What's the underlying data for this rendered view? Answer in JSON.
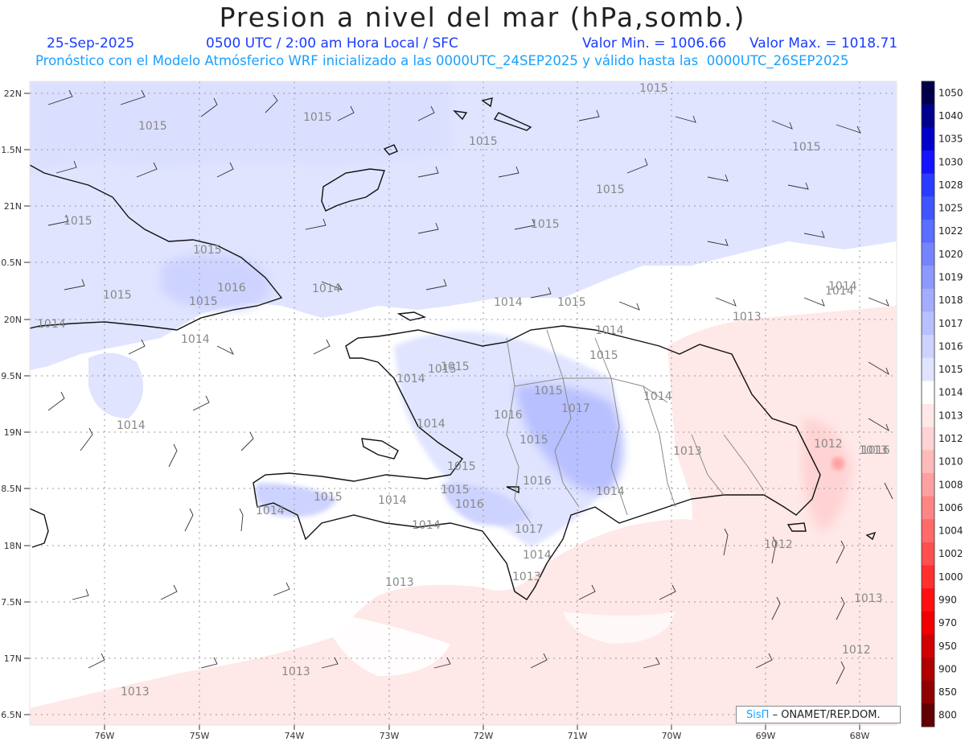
{
  "title": "Presion a nivel del mar (hPa,somb.)",
  "header": {
    "date": "25-Sep-2025",
    "time": "0500 UTC / 2:00 am Hora Local / SFC",
    "min_label": "Valor Min. = 1006.66",
    "max_label": "Valor Max. = 1018.71",
    "forecast_note": "Pronóstico con el Modelo Atmósferico WRF inicializado a las 0000UTC_24SEP2025 y válido hasta las  0000UTC_26SEP2025"
  },
  "credit": {
    "logo": "SisΠ",
    "text": "– ONAMET/REP.DOM."
  },
  "axes": {
    "lat_labels": [
      "22N",
      "1.5N",
      "21N",
      "0.5N",
      "20N",
      "9.5N",
      "19N",
      "8.5N",
      "18N",
      "7.5N",
      "17N",
      "6.5N"
    ],
    "lon_labels": [
      "76W",
      "75W",
      "74W",
      "73W",
      "72W",
      "71W",
      "70W",
      "69W",
      "68W"
    ]
  },
  "colorbar": {
    "levels": [
      "1050",
      "1040",
      "1035",
      "1030",
      "1028",
      "1025",
      "1022",
      "1020",
      "1019",
      "1018",
      "1017",
      "1016",
      "1015",
      "1014",
      "1013",
      "1012",
      "1010",
      "1008",
      "1006",
      "1004",
      "1002",
      "1000",
      "990",
      "970",
      "950",
      "900",
      "850",
      "800"
    ],
    "colors": [
      "#00004a",
      "#00008c",
      "#0000c8",
      "#1414ff",
      "#2a3cff",
      "#3f55ff",
      "#5a6eff",
      "#7484ff",
      "#8d99ff",
      "#a3adff",
      "#b8c0ff",
      "#cdd3ff",
      "#e0e4ff",
      "#ffffff",
      "#ffe8e8",
      "#ffd3d3",
      "#ffbaba",
      "#ffa0a0",
      "#ff8585",
      "#ff6a6a",
      "#ff4f4f",
      "#ff3030",
      "#ff1010",
      "#f00000",
      "#d00000",
      "#b00000",
      "#900000",
      "#600000"
    ]
  },
  "isobar_labels": [
    {
      "text": "1015"
    },
    {
      "text": "1015"
    },
    {
      "text": "1015"
    },
    {
      "text": "1015"
    },
    {
      "text": "1015"
    },
    {
      "text": "1015"
    },
    {
      "text": "1015"
    },
    {
      "text": "1015"
    },
    {
      "text": "1015"
    },
    {
      "text": "1016"
    },
    {
      "text": "1015"
    },
    {
      "text": "1015"
    },
    {
      "text": "1014"
    },
    {
      "text": "1014"
    },
    {
      "text": "1014"
    },
    {
      "text": "1015"
    },
    {
      "text": "1014"
    },
    {
      "text": "1014"
    },
    {
      "text": "1013"
    },
    {
      "text": "1014"
    },
    {
      "text": "1015"
    },
    {
      "text": "1015"
    },
    {
      "text": "1014"
    },
    {
      "text": "1015"
    },
    {
      "text": "1017"
    },
    {
      "text": "1016"
    },
    {
      "text": "1014"
    },
    {
      "text": "1014"
    },
    {
      "text": "1015"
    },
    {
      "text": "1014"
    },
    {
      "text": "1015"
    },
    {
      "text": "1016"
    },
    {
      "text": "1015"
    },
    {
      "text": "1013"
    },
    {
      "text": "1012"
    },
    {
      "text": "1013"
    },
    {
      "text": "1014"
    },
    {
      "text": "1015"
    },
    {
      "text": "1014"
    },
    {
      "text": "1016"
    },
    {
      "text": "1014"
    },
    {
      "text": "1017"
    },
    {
      "text": "1014"
    },
    {
      "text": "1013"
    },
    {
      "text": "1012"
    },
    {
      "text": "1013"
    },
    {
      "text": "1013"
    },
    {
      "text": "1013"
    },
    {
      "text": "1012"
    },
    {
      "text": "1013"
    },
    {
      "text": "1015"
    },
    {
      "text": "1014"
    },
    {
      "text": "1016"
    },
    {
      "text": "1014"
    }
  ]
}
